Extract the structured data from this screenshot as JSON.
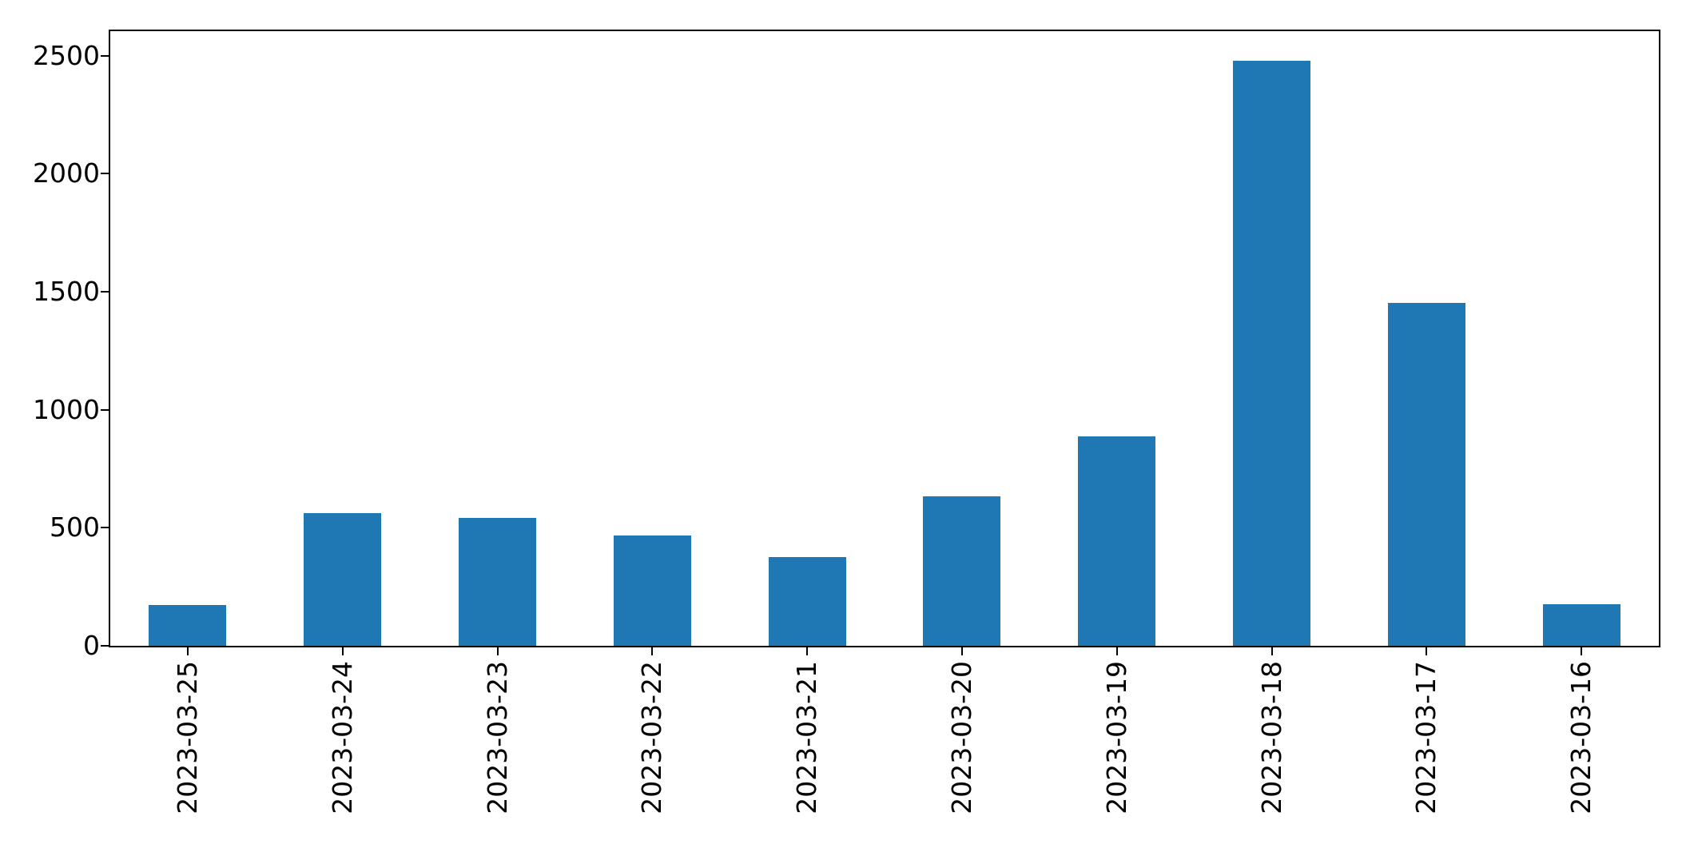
{
  "chart_data": {
    "type": "bar",
    "categories": [
      "2023-03-25",
      "2023-03-24",
      "2023-03-23",
      "2023-03-22",
      "2023-03-21",
      "2023-03-20",
      "2023-03-19",
      "2023-03-18",
      "2023-03-17",
      "2023-03-16"
    ],
    "values": [
      172,
      562,
      542,
      467,
      375,
      634,
      887,
      2479,
      1452,
      176
    ],
    "yticks": [
      0,
      500,
      1000,
      1500,
      2000,
      2500
    ],
    "ylim": [
      0,
      2604
    ],
    "grid": false,
    "x_tick_rotation_deg": 90,
    "bar_color": "#1f77b4",
    "axis_color": "#000000",
    "text_color": "#000000",
    "background_color": "#ffffff"
  }
}
